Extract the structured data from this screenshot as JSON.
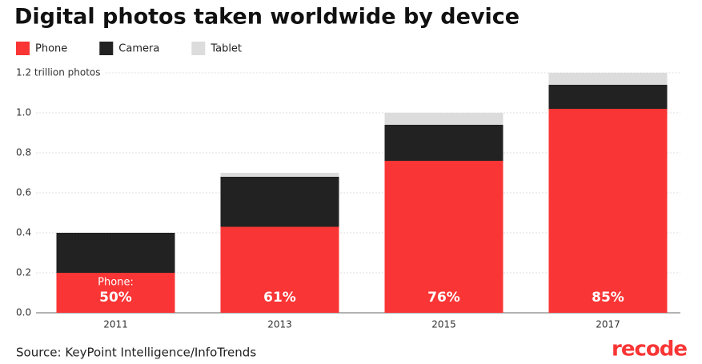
{
  "chart_data": {
    "type": "stacked-bar",
    "title": "Digital photos taken worldwide by device",
    "categories": [
      "2011",
      "2013",
      "2015",
      "2017"
    ],
    "series": [
      {
        "name": "Phone",
        "color": "#f93535",
        "values": [
          0.2,
          0.43,
          0.76,
          1.02
        ]
      },
      {
        "name": "Camera",
        "color": "#222222",
        "values": [
          0.2,
          0.25,
          0.18,
          0.12
        ]
      },
      {
        "name": "Tablet",
        "color": "#dcdcdc",
        "values": [
          0,
          0.02,
          0.06,
          0.06
        ]
      }
    ],
    "phone_share_prefix": "Phone:",
    "phone_share_labels": [
      "50%",
      "61%",
      "76%",
      "85%"
    ],
    "ylim": [
      0,
      1.2
    ],
    "yticks": [
      {
        "value": 0,
        "label": "0.0"
      },
      0.2,
      0.4,
      0.6,
      0.8,
      {
        "value": 1,
        "label": "1.0"
      },
      {
        "value": 1.2,
        "label": "1.2 trillion photos"
      }
    ],
    "grid": true,
    "source": "Source: KeyPoint Intelligence/InfoTrends",
    "logo": "recode"
  }
}
